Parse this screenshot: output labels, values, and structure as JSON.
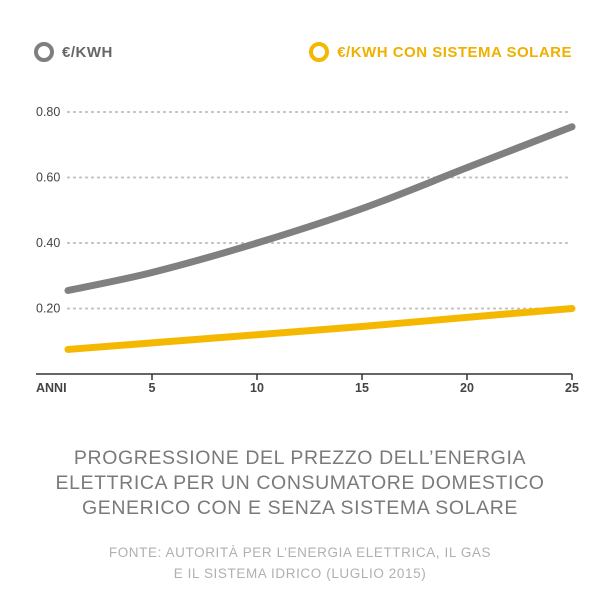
{
  "legend": [
    {
      "label": "€/KWH",
      "color": "#7f7f7f",
      "text_color": "#666666"
    },
    {
      "label": "€/KWH CON SISTEMA SOLARE",
      "color": "#f5b800",
      "text_color": "#f0b000"
    }
  ],
  "chart_data": {
    "type": "line",
    "x_axis_label": "ANNI",
    "x_ticks": [
      5,
      10,
      15,
      20,
      25
    ],
    "y_ticks": [
      "0.20",
      "0.40",
      "0.60",
      "0.80"
    ],
    "xlim": [
      1,
      25
    ],
    "ylim": [
      0,
      0.8
    ],
    "grid": "dotted horizontal",
    "legend_position": "top",
    "series": [
      {
        "name": "€/KWH",
        "color": "#808080",
        "x": [
          1,
          5,
          10,
          15,
          20,
          25
        ],
        "y": [
          0.255,
          0.31,
          0.4,
          0.505,
          0.63,
          0.755
        ]
      },
      {
        "name": "€/KWH CON SISTEMA SOLARE",
        "color": "#f5b800",
        "x": [
          1,
          5,
          10,
          15,
          20,
          25
        ],
        "y": [
          0.075,
          0.095,
          0.12,
          0.145,
          0.173,
          0.2
        ]
      }
    ]
  },
  "caption": "PROGRESSIONE DEL PREZZO DELL’ENERGIA\nELETTRICA PER UN CONSUMATORE DOMESTICO\nGENERICO CON E SENZA SISTEMA SOLARE",
  "source": "FONTE: AUTORITÀ PER L’ENERGIA ELETTRICA, IL GAS\nE IL SISTEMA IDRICO (LUGLIO 2015)"
}
